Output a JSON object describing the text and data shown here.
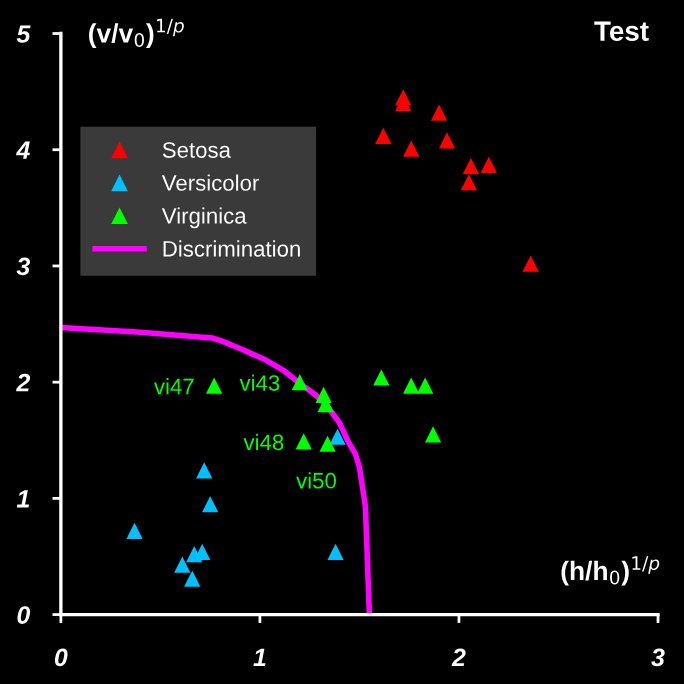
{
  "chart_data": {
    "type": "scatter",
    "title": "Test",
    "xlabel": "(h/h$_{0}$)$^{1/p}$",
    "ylabel": "(v/v$_{0}$)$^{1/p}$",
    "xlim": [
      0,
      3
    ],
    "ylim": [
      0,
      5
    ],
    "xticks": [
      0,
      1,
      2,
      3
    ],
    "yticks": [
      0,
      1,
      2,
      3,
      4,
      5
    ],
    "legend": "top left",
    "series": [
      {
        "name": "Setosa",
        "color": "#ff0000",
        "marker": "triangle",
        "x": [
          1.72,
          1.72,
          1.9,
          1.62,
          1.76,
          1.94,
          2.06,
          2.15,
          2.05,
          2.36
        ],
        "values": [
          4.45,
          4.4,
          4.32,
          4.12,
          4.01,
          4.08,
          3.86,
          3.87,
          3.72,
          3.02
        ]
      },
      {
        "name": "Versicolor",
        "color": "#00c0ff",
        "marker": "triangle",
        "x": [
          1.39,
          0.72,
          0.75,
          0.37,
          0.61,
          0.67,
          0.71,
          0.66,
          1.38
        ],
        "values": [
          1.53,
          1.24,
          0.95,
          0.72,
          0.43,
          0.52,
          0.54,
          0.31,
          0.54
        ]
      },
      {
        "name": "Virginica",
        "color": "#00ff00",
        "marker": "triangle",
        "x": [
          0.77,
          1.2,
          1.32,
          1.33,
          1.22,
          1.34,
          1.61,
          1.76,
          1.83,
          1.87
        ],
        "values": [
          1.97,
          2.0,
          1.89,
          1.81,
          1.49,
          1.47,
          2.04,
          1.97,
          1.97,
          1.55
        ]
      },
      {
        "name": "Discrimination",
        "type": "line",
        "color": "#ff00ff",
        "marker": "none",
        "x": [
          0,
          0.4,
          0.76,
          0.8,
          0.9,
          1.03,
          1.12,
          1.2,
          1.28,
          1.34,
          1.4,
          1.44,
          1.48,
          1.5,
          1.53,
          1.55
        ],
        "values": [
          2.47,
          2.43,
          2.38,
          2.36,
          2.29,
          2.19,
          2.1,
          1.99,
          1.89,
          1.79,
          1.65,
          1.5,
          1.38,
          1.27,
          0.93,
          0
        ]
      }
    ],
    "annotations": [
      {
        "text": "vi47",
        "x": 0.77,
        "y": 1.97
      },
      {
        "text": "vi43",
        "x": 1.2,
        "y": 2.0
      },
      {
        "text": "vi48",
        "x": 1.22,
        "y": 1.49
      },
      {
        "text": "vi50",
        "x": 1.34,
        "y": 1.47
      }
    ]
  }
}
